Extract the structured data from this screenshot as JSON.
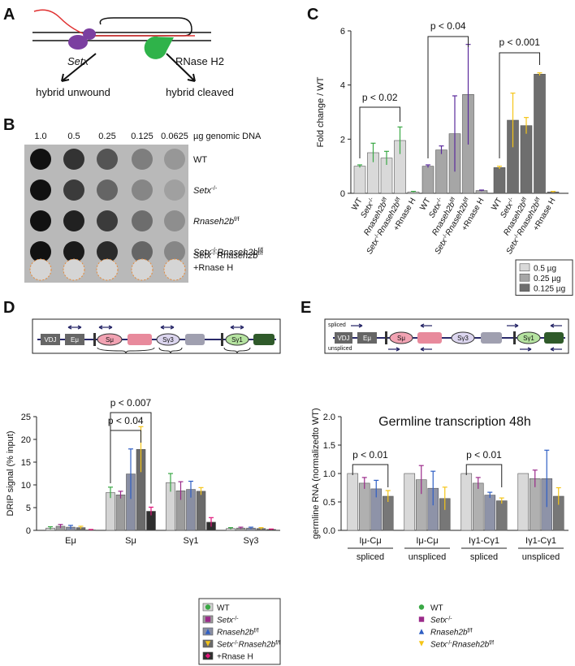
{
  "panel_a": {
    "letter": "A",
    "enzyme_1": "Setx",
    "enzyme_2": "RNase H2",
    "outcome_1": "hybrid unwound",
    "outcome_2": "hybrid cleaved"
  },
  "panel_b": {
    "letter": "B",
    "columns": [
      "1.0",
      "0.5",
      "0.25",
      "0.125",
      "0.0625"
    ],
    "column_unit": "µg genomic DNA",
    "rows": [
      [
        "WT"
      ],
      [
        "Setx-/-"
      ],
      [
        "Rnaseh2bf/f"
      ],
      [
        "Setx-/-Rnaseh2bf/f"
      ],
      [
        "Setx-/-Rnaseh2bf/f",
        "+Rnase H"
      ]
    ]
  },
  "panel_c": {
    "letter": "C"
  },
  "panel_d": {
    "letter": "D",
    "diagram_labels": [
      "VDJ",
      "Eμ",
      "Sμ",
      "Sγ3",
      "Sγ1"
    ]
  },
  "panel_e": {
    "letter": "E",
    "diagram_labels": [
      "VDJ",
      "Eμ",
      "Sμ",
      "Sγ3",
      "Sγ1"
    ],
    "spliced": "spliced",
    "unspliced": "unspliced"
  },
  "chart_data": [
    {
      "type": "bar",
      "cluster": "series",
      "y_label": "Fold change / WT",
      "categories": [
        "WT",
        "Setx-/-",
        "Rnaseh2bf/f",
        "Setx-/-Rnaseh2bf/f",
        "+Rnase H"
      ],
      "series": [
        {
          "name": "0.5 µg",
          "color": "#d9d9d9",
          "marker_color": "#3aa845",
          "values": [
            1.0,
            1.5,
            1.3,
            1.95,
            0.05
          ],
          "errors": [
            0.05,
            0.35,
            0.25,
            0.5,
            0.02
          ]
        },
        {
          "name": "0.25 µg",
          "color": "#a6a6a6",
          "marker_color": "#5b2a9c",
          "values": [
            1.0,
            1.6,
            2.2,
            3.65,
            0.1
          ],
          "errors": [
            0.05,
            0.15,
            1.4,
            1.85,
            0.02
          ]
        },
        {
          "name": "0.125 µg",
          "color": "#6e6e6e",
          "marker_color": "#f5c518",
          "values": [
            0.95,
            2.7,
            2.5,
            4.4,
            0.05
          ],
          "errors": [
            0.05,
            1.0,
            0.3,
            0.05,
            0.02
          ]
        }
      ],
      "annotations": [
        "p < 0.02",
        "p < 0.04",
        "p < 0.001"
      ],
      "ylim": [
        0,
        6
      ],
      "yticks": [
        0,
        2,
        4,
        6
      ],
      "legend_box": true,
      "legend_swatch": true
    },
    {
      "type": "bar",
      "cluster": "category",
      "y_label": "DRIP signal (% input)",
      "categories": [
        "Eμ",
        "Sμ",
        "Sγ1",
        "Sγ3"
      ],
      "series": [
        {
          "name": "WT",
          "color": "#d4d4d4",
          "marker_color": "#3aa845",
          "marker": "circle",
          "values": [
            0.5,
            8.3,
            10.5,
            0.4
          ],
          "errors": [
            0.3,
            1.2,
            2.0,
            0.2
          ]
        },
        {
          "name": "Setx-/-",
          "color": "#9c9c9c",
          "marker_color": "#9b2a8a",
          "marker": "square",
          "values": [
            0.9,
            7.8,
            8.7,
            0.5
          ],
          "errors": [
            0.4,
            0.8,
            2.0,
            0.2
          ]
        },
        {
          "name": "Rnaseh2bf/f",
          "color": "#8a8fa3",
          "marker_color": "#2f5fc4",
          "marker": "triangle",
          "values": [
            0.7,
            12.4,
            9.0,
            0.5
          ],
          "errors": [
            0.4,
            5.5,
            1.8,
            0.2
          ]
        },
        {
          "name": "Setx-/-Rnaseh2bf/f",
          "color": "#6a6a6a",
          "marker_color": "#f5c518",
          "marker": "triangle-down",
          "values": [
            0.6,
            17.8,
            8.6,
            0.4
          ],
          "errors": [
            0.3,
            5.0,
            0.8,
            0.2
          ]
        },
        {
          "name": "+Rnase H",
          "color": "#2e2e2e",
          "marker_color": "#e0157a",
          "marker": "diamond",
          "values": [
            0.1,
            4.2,
            1.8,
            0.2
          ],
          "errors": [
            0.1,
            0.9,
            1.0,
            0.1
          ]
        }
      ],
      "annotations": [
        "p < 0.04",
        "p < 0.007"
      ],
      "ylim": [
        0,
        25
      ],
      "yticks": [
        0,
        5,
        10,
        15,
        20,
        25
      ],
      "legend_box": true,
      "legend_swatch": true
    },
    {
      "type": "bar",
      "cluster": "category",
      "title": "Germline transcription 48h",
      "y_label": "germline RNA (normalizedto WT)",
      "categories": [
        "Iμ-Cμ",
        "Iμ-Cμ",
        "Iγ1-Cγ1",
        "Iγ1-Cγ1"
      ],
      "subcategories": [
        "spliced",
        "unspliced",
        "spliced",
        "unspliced"
      ],
      "series": [
        {
          "name": "WT",
          "color": "#d9d9d9",
          "marker_color": "#3aa845",
          "marker": "circle",
          "values": [
            1.0,
            1.0,
            1.0,
            1.0
          ],
          "errors": [
            0,
            0,
            0,
            0
          ]
        },
        {
          "name": "Setx-/-",
          "color": "#b0b0b0",
          "marker_color": "#9b2a8a",
          "marker": "square",
          "values": [
            0.83,
            0.89,
            0.83,
            0.91
          ],
          "errors": [
            0.1,
            0.25,
            0.1,
            0.15
          ]
        },
        {
          "name": "Rnaseh2bf/f",
          "color": "#8e93a8",
          "marker_color": "#2f5fc4",
          "marker": "triangle",
          "values": [
            0.73,
            0.74,
            0.62,
            0.91
          ],
          "errors": [
            0.15,
            0.3,
            0.05,
            0.5
          ]
        },
        {
          "name": "Setx-/-Rnaseh2bf/f",
          "color": "#777777",
          "marker_color": "#f5c518",
          "marker": "triangle-down",
          "values": [
            0.6,
            0.56,
            0.52,
            0.6
          ],
          "errors": [
            0.1,
            0.2,
            0.05,
            0.15
          ]
        }
      ],
      "annotations": [
        "p < 0.01",
        "p < 0.01"
      ],
      "ylim": [
        0,
        2
      ],
      "yticks": [
        {
          "value": 0,
          "label": "0.0"
        },
        {
          "value": 0.5,
          "label": "0.5"
        },
        {
          "value": 1,
          "label": "1.0"
        },
        {
          "value": 1.5,
          "label": "1.5"
        },
        {
          "value": 2,
          "label": "2.0"
        }
      ],
      "legend_box": false,
      "legend_swatch": false
    }
  ]
}
